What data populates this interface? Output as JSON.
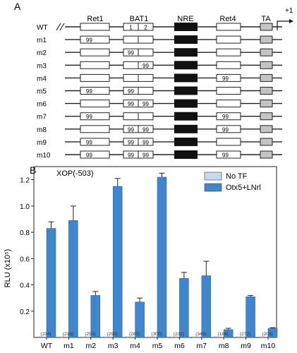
{
  "panel_a": {
    "label": "A",
    "headers": [
      "Ret1",
      "BAT1",
      "NRE",
      "Ret4",
      "TA"
    ],
    "tss_label": "+1",
    "bat1_subs": [
      "1",
      "2"
    ],
    "rows": [
      {
        "name": "WT",
        "ret1": "",
        "bat1a": "1",
        "bat1b": "2",
        "ret4": ""
      },
      {
        "name": "m1",
        "ret1": "99",
        "bat1a": "",
        "bat1b": "",
        "ret4": ""
      },
      {
        "name": "m2",
        "ret1": "",
        "bat1a": "99",
        "bat1b": "",
        "ret4": ""
      },
      {
        "name": "m3",
        "ret1": "",
        "bat1a": "",
        "bat1b": "99",
        "ret4": ""
      },
      {
        "name": "m4",
        "ret1": "",
        "bat1a": "",
        "bat1b": "",
        "ret4": "99"
      },
      {
        "name": "m5",
        "ret1": "99",
        "bat1a": "99",
        "bat1b": "",
        "ret4": ""
      },
      {
        "name": "m6",
        "ret1": "",
        "bat1a": "99",
        "bat1b": "99",
        "ret4": ""
      },
      {
        "name": "m7",
        "ret1": "99",
        "bat1a": "",
        "bat1b": "",
        "ret4": "99"
      },
      {
        "name": "m8",
        "ret1": "",
        "bat1a": "99",
        "bat1b": "99",
        "ret4": "99"
      },
      {
        "name": "m9",
        "ret1": "99",
        "bat1a": "99",
        "bat1b": "99",
        "ret4": ""
      },
      {
        "name": "m10",
        "ret1": "99",
        "bat1a": "99",
        "bat1b": "99",
        "ret4": "99"
      }
    ]
  },
  "chart_data": {
    "type": "bar",
    "panel_label": "B",
    "title": "XOP(-503)",
    "ylabel": "RLU (x10⁵)",
    "ylim": [
      0,
      1.3
    ],
    "yticks": [
      0.2,
      0.4,
      0.6,
      0.8,
      1.0,
      1.2
    ],
    "categories": [
      "WT",
      "m1",
      "m2",
      "m3",
      "m4",
      "m5",
      "m6",
      "m7",
      "m8",
      "m9",
      "m10"
    ],
    "series": [
      {
        "name": "No TF",
        "color": "#c8d8ee",
        "values": [
          0.005,
          0.005,
          0.005,
          0.005,
          0.005,
          0.005,
          0.005,
          0.005,
          0.005,
          0.005,
          0.005
        ]
      },
      {
        "name": "Otx5+LNrl",
        "color": "#3f86cc",
        "values": [
          0.83,
          0.89,
          0.32,
          1.15,
          0.27,
          1.22,
          0.45,
          0.47,
          0.06,
          0.31,
          0.07
        ],
        "errors": [
          0.05,
          0.11,
          0.03,
          0.06,
          0.03,
          0.03,
          0.045,
          0.11,
          0.01,
          0.01,
          0.005
        ]
      }
    ],
    "fold_labels": [
      "(234)",
      "(216)",
      "(254)",
      "(290)",
      "(280)",
      "(300)",
      "(232)",
      "(349)",
      "(184)",
      "(272)",
      "(200)"
    ],
    "legend_position": "top-right"
  }
}
